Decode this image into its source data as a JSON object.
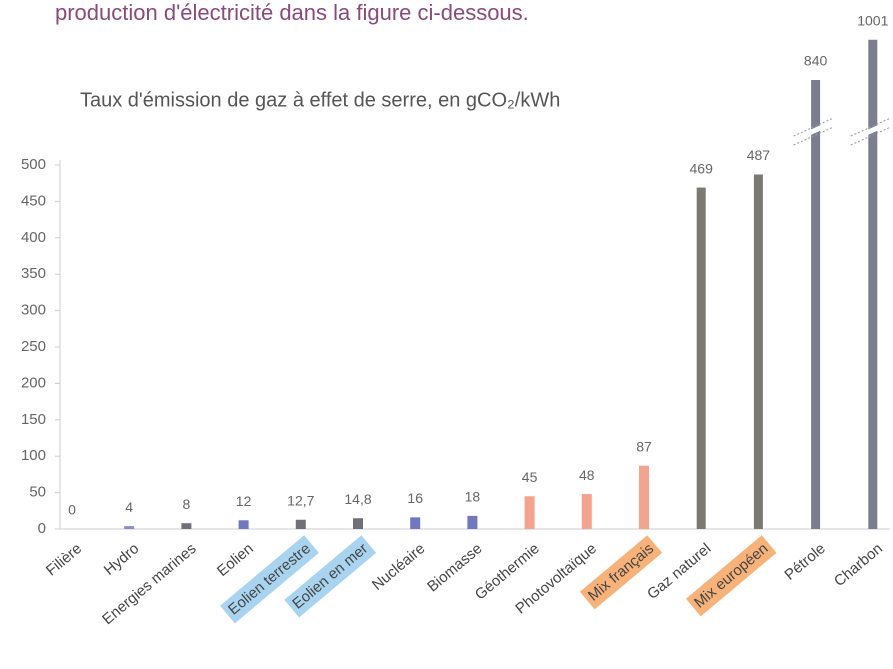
{
  "chart_data": {
    "type": "bar",
    "intro": "production d'électricité dans la figure ci-dessous.",
    "title": "Taux d'émission de gaz à effet de serre, en gCO₂/kWh",
    "categories": [
      "Filière",
      "Hydro",
      "Energies marines",
      "Eolien",
      "Eolien terrestre",
      "Eolien en mer",
      "Nucléaire",
      "Biomasse",
      "Géothermie",
      "Photovoltaïque",
      "Mix français",
      "Gaz naturel",
      "Mix européen",
      "Pétrole",
      "Charbon"
    ],
    "values": [
      0,
      4,
      8,
      12,
      12.7,
      14.8,
      16,
      18,
      45,
      48,
      87,
      469,
      487,
      840,
      1001
    ],
    "value_labels": [
      "0",
      "4",
      "8",
      "12",
      "12,7",
      "14,8",
      "16",
      "18",
      "45",
      "48",
      "87",
      "469",
      "487",
      "840",
      "1001"
    ],
    "colors": [
      "#8a8fc8",
      "#8a8fc8",
      "#707078",
      "#6f78c0",
      "#707078",
      "#707078",
      "#6f78c0",
      "#6f78c0",
      "#f4a48e",
      "#f4a48e",
      "#f4a48e",
      "#7a7a72",
      "#7a7a72",
      "#7c7e90",
      "#7c7e90"
    ],
    "label_highlights": [
      null,
      null,
      null,
      null,
      "#a8d4f0",
      "#a8d4f0",
      null,
      null,
      null,
      null,
      "#f7b27a",
      null,
      "#f7b27a",
      null,
      null
    ],
    "ylim": [
      0,
      500
    ],
    "yticks": [
      0,
      50,
      100,
      150,
      200,
      250,
      300,
      350,
      400,
      450,
      500
    ],
    "axis_break": true
  }
}
